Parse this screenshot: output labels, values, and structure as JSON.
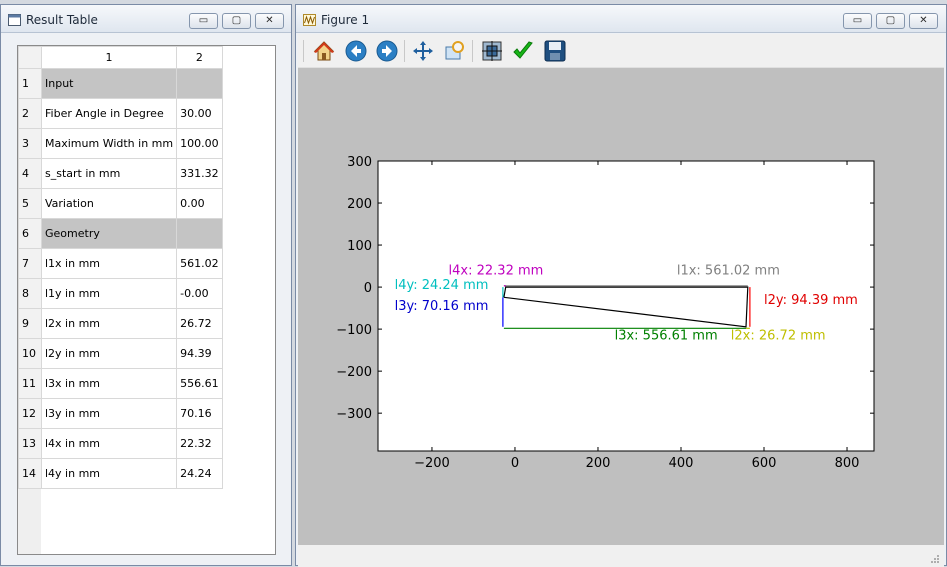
{
  "result_window": {
    "title": "Result Table",
    "columns": [
      "1",
      "2"
    ],
    "rows": [
      {
        "n": "1",
        "label": "Input",
        "value": "",
        "section": true
      },
      {
        "n": "2",
        "label": "Fiber Angle in Degree",
        "value": "30.00"
      },
      {
        "n": "3",
        "label": "Maximum Width in mm",
        "value": "100.00"
      },
      {
        "n": "4",
        "label": "s_start in mm",
        "value": "331.32"
      },
      {
        "n": "5",
        "label": "Variation",
        "value": "0.00"
      },
      {
        "n": "6",
        "label": "Geometry",
        "value": "",
        "section": true
      },
      {
        "n": "7",
        "label": "l1x in mm",
        "value": "561.02"
      },
      {
        "n": "8",
        "label": "l1y in mm",
        "value": "-0.00"
      },
      {
        "n": "9",
        "label": "l2x in mm",
        "value": "26.72"
      },
      {
        "n": "10",
        "label": "l2y in mm",
        "value": "94.39"
      },
      {
        "n": "11",
        "label": "l3x in mm",
        "value": "556.61"
      },
      {
        "n": "12",
        "label": "l3y in mm",
        "value": "70.16"
      },
      {
        "n": "13",
        "label": "l4x in mm",
        "value": "22.32"
      },
      {
        "n": "14",
        "label": "l4y in mm",
        "value": "24.24"
      }
    ]
  },
  "figure_window": {
    "title": "Figure 1",
    "toolbar": [
      "home-icon",
      "back-icon",
      "forward-icon",
      "pan-icon",
      "zoom-icon",
      "subplots-icon",
      "check-icon",
      "save-icon"
    ]
  },
  "chart_data": {
    "type": "line",
    "xlim": [
      -330,
      865
    ],
    "ylim": [
      -390,
      300
    ],
    "xticks": [
      -200,
      0,
      200,
      400,
      600,
      800
    ],
    "yticks": [
      300,
      200,
      100,
      0,
      -100,
      -200,
      -300
    ],
    "grid": false,
    "series": [
      {
        "color": "#000000",
        "x": [
          -26.72,
          556.61,
          561.02,
          -22.32,
          -26.72
        ],
        "y": [
          -24.24,
          -94.39,
          0,
          -0.1,
          -24.24
        ]
      },
      {
        "color": "#808080",
        "x": [
          -26.72,
          561.02
        ],
        "y": [
          3,
          3
        ]
      },
      {
        "color": "#ff0000",
        "x": [
          566,
          566
        ],
        "y": [
          0,
          -94.39
        ]
      },
      {
        "color": "#008000",
        "x": [
          -26.72,
          556.61
        ],
        "y": [
          -98,
          -98
        ]
      },
      {
        "color": "#0000ff",
        "x": [
          -29,
          -29
        ],
        "y": [
          -24.24,
          -94.39
        ]
      },
      {
        "color": "#00bfbf",
        "x": [
          -29,
          -29
        ],
        "y": [
          0,
          -24.24
        ]
      },
      {
        "color": "#bfbf00",
        "x": [
          556.61,
          566
        ],
        "y": [
          -98,
          -98
        ]
      },
      {
        "color": "#bf00bf",
        "x": [
          -26.72,
          -22.32
        ],
        "y": [
          3,
          3
        ]
      }
    ],
    "annotations": [
      {
        "text": "l1x: 561.02 mm",
        "color": "#808080",
        "x": 390,
        "y": 30
      },
      {
        "text": "l2y: 94.39 mm",
        "color": "#e00000",
        "x": 600,
        "y": -40
      },
      {
        "text": "l3x: 556.61 mm",
        "color": "#008000",
        "x": 240,
        "y": -125
      },
      {
        "text": "l2x: 26.72 mm",
        "color": "#bfbf00",
        "x": 520,
        "y": -125
      },
      {
        "text": "l3y: 70.16 mm",
        "color": "#0000cc",
        "x": -290,
        "y": -55
      },
      {
        "text": "l4y: 24.24 mm",
        "color": "#00bfbf",
        "x": -290,
        "y": -5
      },
      {
        "text": "l4x: 22.32 mm",
        "color": "#bf00bf",
        "x": -160,
        "y": 30
      }
    ]
  }
}
